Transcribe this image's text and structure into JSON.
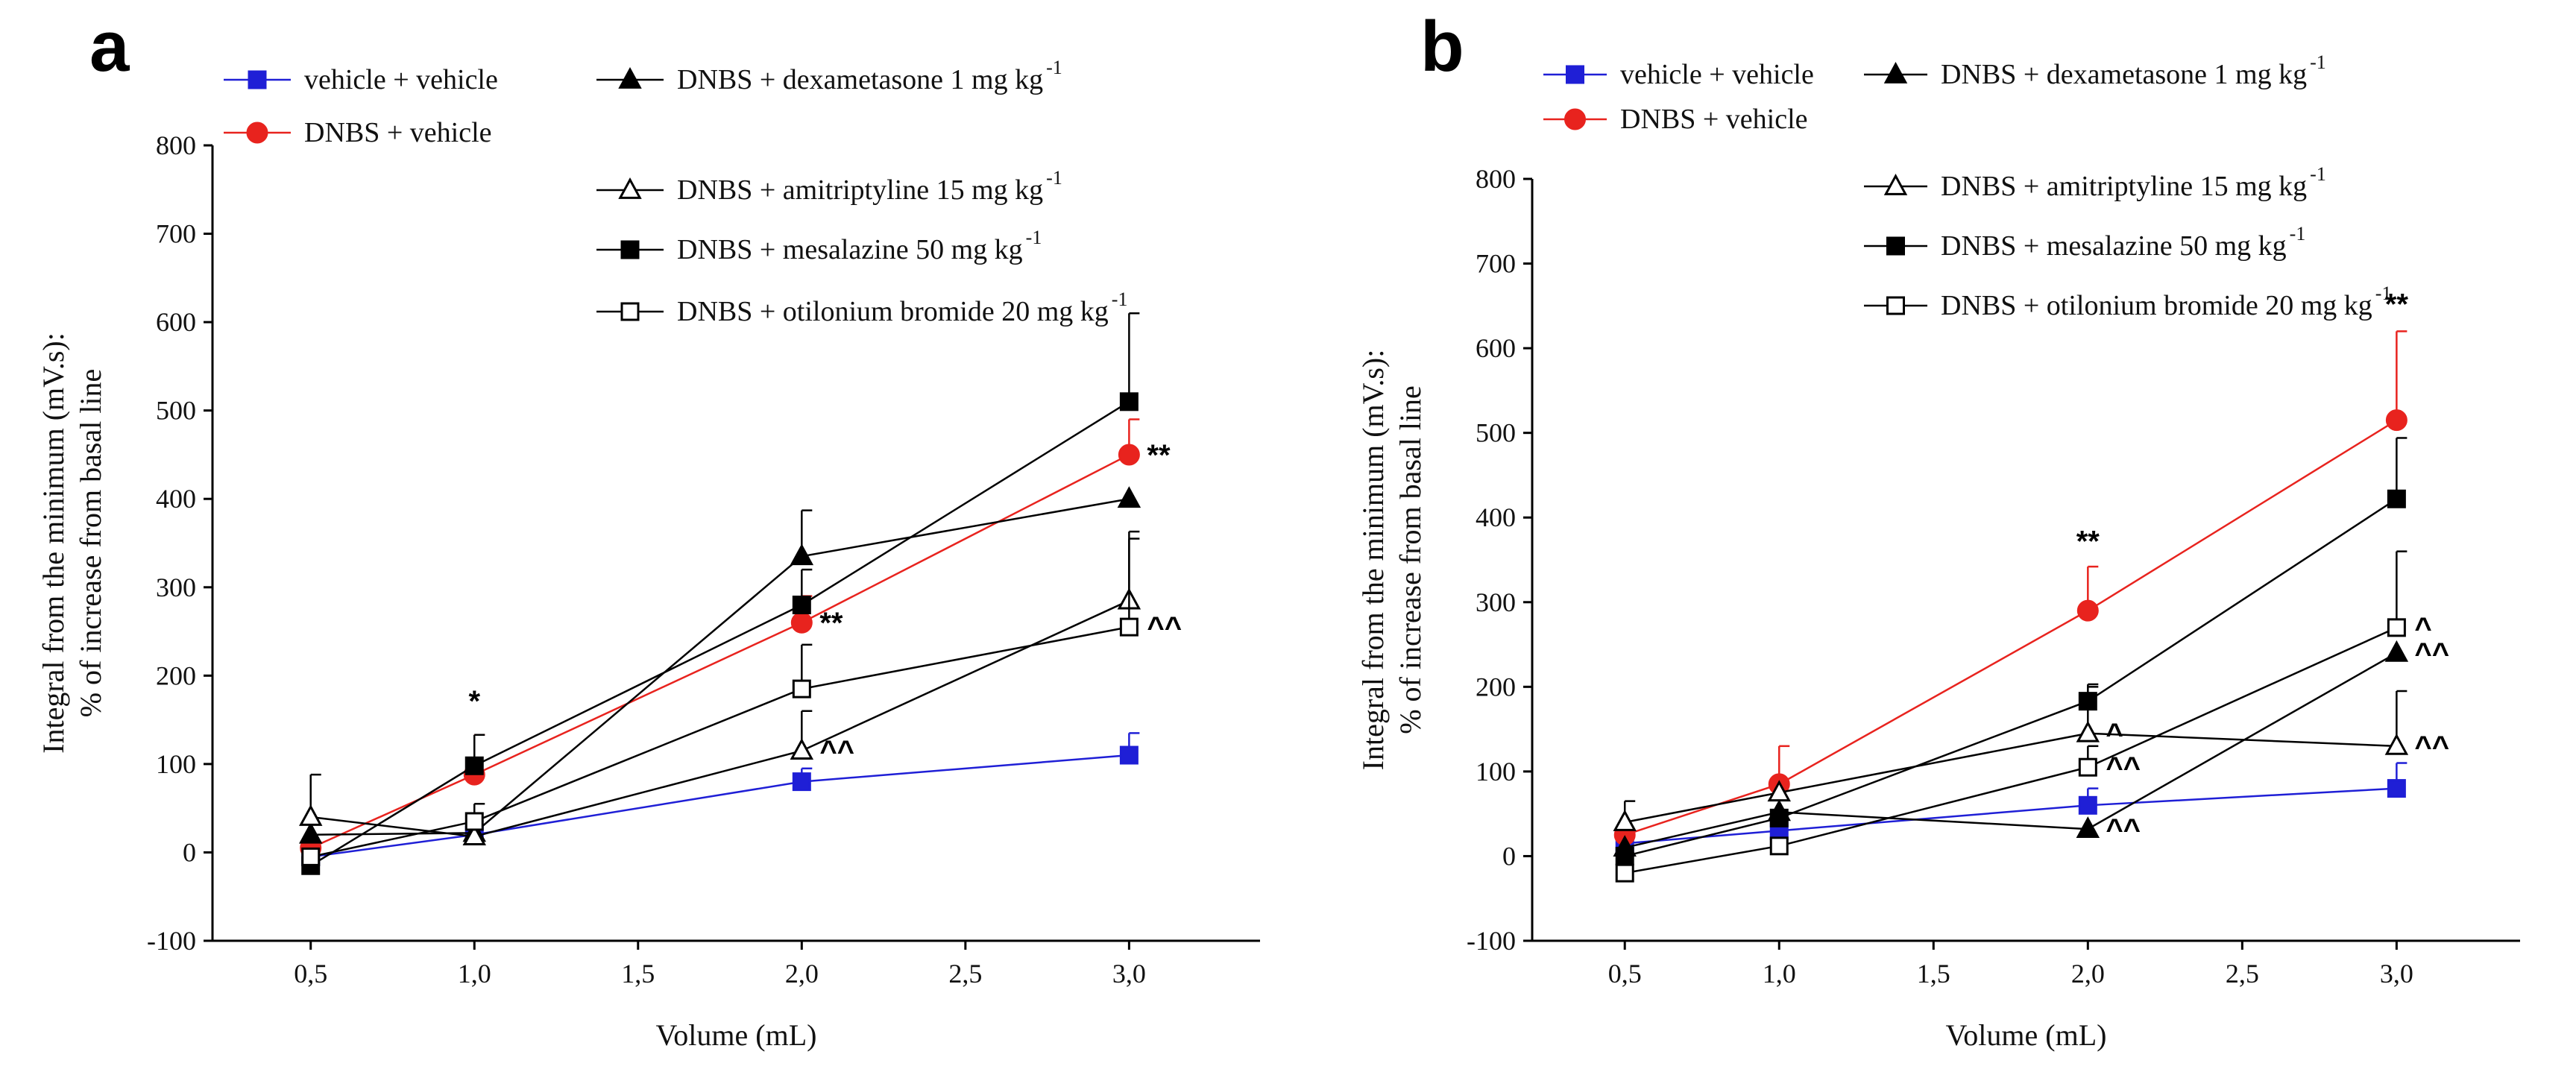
{
  "chart_data": [
    {
      "type": "line",
      "panel_label": "a",
      "xlabel": "Volume (mL)",
      "ylabel_line1": "Integral from the minimum (mV.s):",
      "ylabel_line2": "% of increase from basal line",
      "xlim": [
        0.2,
        3.4
      ],
      "ylim": [
        -100,
        800
      ],
      "xticks": [
        0.5,
        1.0,
        1.5,
        2.0,
        2.5,
        3.0
      ],
      "xtick_labels": [
        "0,5",
        "1,0",
        "1,5",
        "2,0",
        "2,5",
        "3,0"
      ],
      "yticks": [
        -100,
        0,
        100,
        200,
        300,
        400,
        500,
        600,
        700,
        800
      ],
      "ytick_labels": [
        "-100",
        "0",
        "100",
        "200",
        "300",
        "400",
        "500",
        "600",
        "700",
        "800"
      ],
      "x": [
        0.5,
        1.0,
        2.0,
        3.0
      ],
      "series": [
        {
          "key": "vv",
          "name": "vehicle + vehicle",
          "color": "#1f1fd6",
          "marker": "square",
          "fill": "filled",
          "values": [
            -5,
            20,
            80,
            110
          ],
          "errors": [
            0,
            0,
            15,
            25
          ]
        },
        {
          "key": "dv",
          "name": "DNBS + vehicle",
          "color": "#e8231e",
          "marker": "circle",
          "fill": "filled",
          "values": [
            5,
            88,
            260,
            450
          ],
          "errors": [
            0,
            45,
            30,
            40
          ]
        },
        {
          "key": "dex",
          "name": "DNBS + dexametasone 1 mg kg",
          "name_sup": "-1",
          "color": "#000000",
          "marker": "triangle",
          "fill": "filled",
          "values": [
            20,
            22,
            335,
            400
          ],
          "errors": [
            0,
            0,
            52,
            0
          ]
        },
        {
          "key": "ami",
          "name": "DNBS + amitriptyline 15 mg kg",
          "name_sup": "-1",
          "color": "#000000",
          "marker": "triangle",
          "fill": "open",
          "values": [
            40,
            18,
            115,
            285
          ],
          "errors": [
            48,
            0,
            45,
            78
          ]
        },
        {
          "key": "mes",
          "name": "DNBS + mesalazine 50 mg kg",
          "name_sup": "-1",
          "color": "#000000",
          "marker": "square",
          "fill": "filled",
          "values": [
            -15,
            98,
            280,
            510
          ],
          "errors": [
            0,
            35,
            40,
            100
          ]
        },
        {
          "key": "oti",
          "name": "DNBS + otilonium bromide 20 mg kg",
          "name_sup": "-1",
          "color": "#000000",
          "marker": "square",
          "fill": "open",
          "values": [
            -5,
            35,
            185,
            255
          ],
          "errors": [
            0,
            20,
            50,
            100
          ]
        }
      ],
      "annotations": [
        {
          "text": "*",
          "x": 1.0,
          "y": 160,
          "place": "center"
        },
        {
          "text": "**",
          "x": 2.0,
          "y": 260,
          "place": "right"
        },
        {
          "text": "**",
          "x": 3.0,
          "y": 450,
          "place": "right"
        },
        {
          "text": "^^",
          "x": 2.0,
          "y": 115,
          "place": "right"
        },
        {
          "text": "^^",
          "x": 3.0,
          "y": 255,
          "place": "right"
        }
      ],
      "legend_position": "top"
    },
    {
      "type": "line",
      "panel_label": "b",
      "xlabel": "Volume (mL)",
      "ylabel_line1": "Integral from the minimum (mV.s):",
      "ylabel_line2": "% of increase from basal line",
      "xlim": [
        0.2,
        3.4
      ],
      "ylim": [
        -100,
        800
      ],
      "xticks": [
        0.5,
        1.0,
        1.5,
        2.0,
        2.5,
        3.0
      ],
      "xtick_labels": [
        "0,5",
        "1,0",
        "1,5",
        "2,0",
        "2,5",
        "3,0"
      ],
      "yticks": [
        -100,
        0,
        100,
        200,
        300,
        400,
        500,
        600,
        700,
        800
      ],
      "ytick_labels": [
        "-100",
        "0",
        "100",
        "200",
        "300",
        "400",
        "500",
        "600",
        "700",
        "800"
      ],
      "x": [
        0.5,
        1.0,
        2.0,
        3.0
      ],
      "series": [
        {
          "key": "vv",
          "name": "vehicle + vehicle",
          "color": "#1f1fd6",
          "marker": "square",
          "fill": "filled",
          "values": [
            15,
            30,
            60,
            80
          ],
          "errors": [
            0,
            0,
            20,
            30
          ]
        },
        {
          "key": "dv",
          "name": "DNBS + vehicle",
          "color": "#e8231e",
          "marker": "circle",
          "fill": "filled",
          "values": [
            25,
            85,
            290,
            515
          ],
          "errors": [
            0,
            45,
            52,
            105
          ]
        },
        {
          "key": "dex",
          "name": "DNBS + dexametasone 1 mg kg",
          "name_sup": "-1",
          "color": "#000000",
          "marker": "triangle",
          "fill": "filled",
          "values": [
            10,
            52,
            32,
            240
          ],
          "errors": [
            0,
            0,
            0,
            0
          ]
        },
        {
          "key": "ami",
          "name": "DNBS + amitriptyline 15 mg kg",
          "name_sup": "-1",
          "color": "#000000",
          "marker": "triangle",
          "fill": "open",
          "values": [
            40,
            75,
            145,
            130
          ],
          "errors": [
            25,
            0,
            55,
            65
          ]
        },
        {
          "key": "mes",
          "name": "DNBS + mesalazine 50 mg kg",
          "name_sup": "-1",
          "color": "#000000",
          "marker": "square",
          "fill": "filled",
          "values": [
            0,
            45,
            183,
            422
          ],
          "errors": [
            0,
            0,
            20,
            72
          ]
        },
        {
          "key": "oti",
          "name": "DNBS + otilonium bromide 20 mg kg",
          "name_sup": "-1",
          "color": "#000000",
          "marker": "square",
          "fill": "open",
          "values": [
            -20,
            12,
            105,
            270
          ],
          "errors": [
            0,
            0,
            25,
            90
          ]
        }
      ],
      "annotations": [
        {
          "text": "**",
          "x": 2.0,
          "y": 360,
          "place": "center"
        },
        {
          "text": "**",
          "x": 3.0,
          "y": 640,
          "place": "center"
        },
        {
          "text": "^",
          "x": 2.0,
          "y": 145,
          "place": "right"
        },
        {
          "text": "^^",
          "x": 2.0,
          "y": 105,
          "place": "right"
        },
        {
          "text": "^^",
          "x": 2.0,
          "y": 32,
          "place": "right"
        },
        {
          "text": "^",
          "x": 3.0,
          "y": 270,
          "place": "right"
        },
        {
          "text": "^^",
          "x": 3.0,
          "y": 240,
          "place": "right"
        },
        {
          "text": "^^",
          "x": 3.0,
          "y": 130,
          "place": "right"
        }
      ],
      "legend_position": "top"
    }
  ]
}
